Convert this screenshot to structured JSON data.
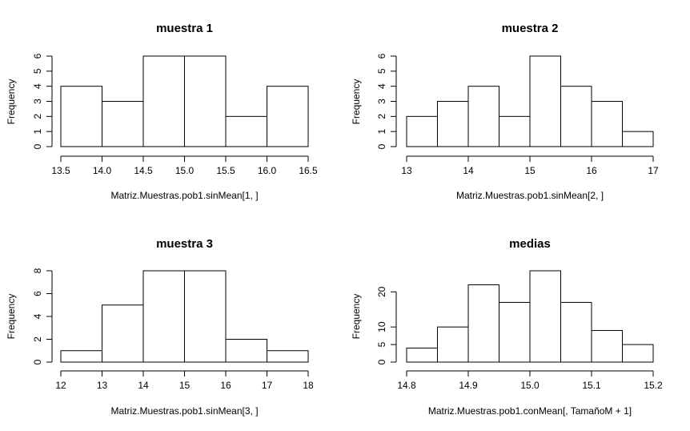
{
  "chart_data": [
    {
      "type": "bar",
      "title": "muestra 1",
      "xlabel": "Matriz.Muestras.pob1.sinMean[1, ]",
      "ylabel": "Frequency",
      "bins": [
        13.5,
        14.0,
        14.5,
        15.0,
        15.5,
        16.0,
        16.5
      ],
      "counts": [
        4,
        3,
        6,
        6,
        2,
        4
      ],
      "xlim": [
        13.5,
        16.5
      ],
      "ylim": [
        0,
        6
      ],
      "x_ticks": [
        "13.5",
        "14.0",
        "14.5",
        "15.0",
        "15.5",
        "16.0",
        "16.5"
      ],
      "y_ticks": [
        "0",
        "1",
        "2",
        "3",
        "4",
        "5",
        "6"
      ],
      "grid": false
    },
    {
      "type": "bar",
      "title": "muestra 2",
      "xlabel": "Matriz.Muestras.pob1.sinMean[2, ]",
      "ylabel": "Frequency",
      "bins": [
        13.0,
        13.5,
        14.0,
        14.5,
        15.0,
        15.5,
        16.0,
        16.5,
        17.0
      ],
      "counts": [
        2,
        3,
        4,
        2,
        6,
        4,
        3,
        1
      ],
      "xlim": [
        13,
        17
      ],
      "ylim": [
        0,
        6
      ],
      "x_ticks": [
        "13",
        "14",
        "15",
        "16",
        "17"
      ],
      "y_ticks": [
        "0",
        "1",
        "2",
        "3",
        "4",
        "5",
        "6"
      ],
      "grid": false
    },
    {
      "type": "bar",
      "title": "muestra 3",
      "xlabel": "Matriz.Muestras.pob1.sinMean[3, ]",
      "ylabel": "Frequency",
      "bins": [
        12,
        13,
        14,
        15,
        16,
        17,
        18
      ],
      "counts": [
        1,
        5,
        8,
        8,
        2,
        1
      ],
      "xlim": [
        12,
        18
      ],
      "ylim": [
        0,
        8
      ],
      "x_ticks": [
        "12",
        "13",
        "14",
        "15",
        "16",
        "17",
        "18"
      ],
      "y_ticks": [
        "0",
        "2",
        "4",
        "6",
        "8"
      ],
      "grid": false
    },
    {
      "type": "bar",
      "title": "medias",
      "xlabel": "Matriz.Muestras.pob1.conMean[, TamañoM + 1]",
      "ylabel": "Frequency",
      "bins": [
        14.8,
        14.85,
        14.9,
        14.95,
        15.0,
        15.05,
        15.1,
        15.15,
        15.2
      ],
      "counts": [
        4,
        10,
        22,
        17,
        26,
        17,
        9,
        5
      ],
      "xlim": [
        14.8,
        15.2
      ],
      "ylim": [
        0,
        26
      ],
      "x_ticks": [
        "14.8",
        "14.9",
        "15.0",
        "15.1",
        "15.2"
      ],
      "y_ticks": [
        "0",
        "5",
        "10",
        "20"
      ],
      "grid": false
    }
  ]
}
